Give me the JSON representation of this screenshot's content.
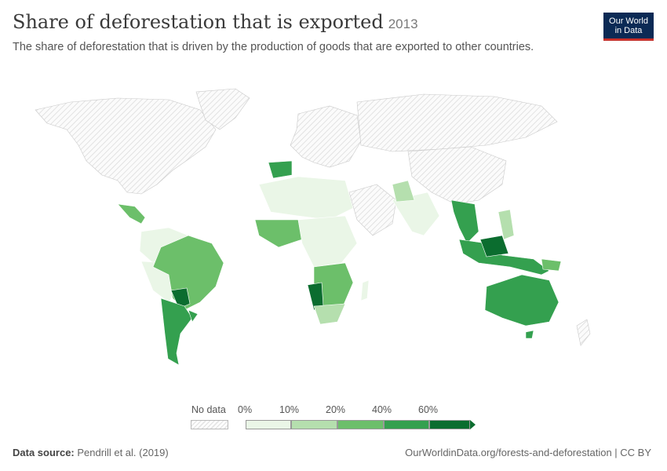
{
  "header": {
    "title": "Share of deforestation that is exported",
    "year": "2013",
    "subtitle": "The share of deforestation that is driven by the production of goods that are exported to other countries."
  },
  "logo": {
    "line1": "Our World",
    "line2": "in Data"
  },
  "legend": {
    "no_data_label": "No data",
    "ticks": [
      "0%",
      "10%",
      "20%",
      "40%",
      "60%"
    ],
    "colors": [
      "#eaf6e7",
      "#b5dfae",
      "#6cbf6a",
      "#34a04f",
      "#0b6d2f"
    ],
    "no_data_color": "#e2e2e2"
  },
  "map": {
    "no_data_regions": [
      "North America",
      "Europe",
      "Russia",
      "Middle East",
      "China",
      "Greenland",
      "Antarctic islands"
    ],
    "regions": [
      {
        "name": "Brazil",
        "share_bin": 2
      },
      {
        "name": "Paraguay",
        "share_bin": 4
      },
      {
        "name": "Argentina",
        "share_bin": 3
      },
      {
        "name": "Namibia",
        "share_bin": 4
      },
      {
        "name": "Australia",
        "share_bin": 3
      },
      {
        "name": "Indonesia",
        "share_bin": 3
      },
      {
        "name": "Spain",
        "share_bin": 3
      },
      {
        "name": "South Africa",
        "share_bin": 1
      }
    ]
  },
  "footer": {
    "source_label": "Data source:",
    "source": "Pendrill et al. (2019)",
    "url": "OurWorldinData.org/forests-and-deforestation | CC BY"
  }
}
